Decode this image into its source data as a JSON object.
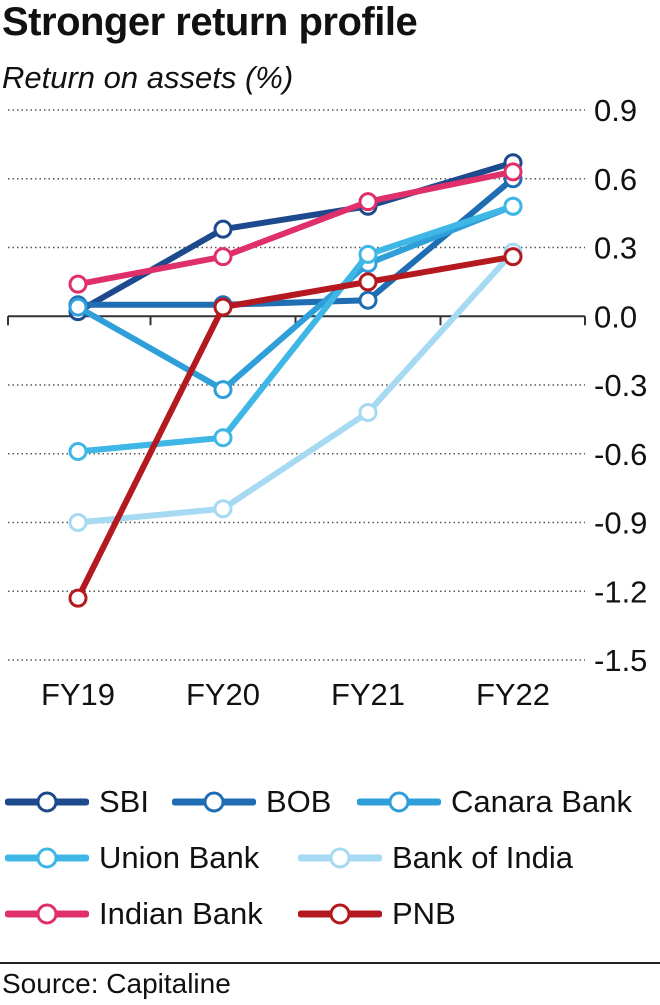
{
  "header": {
    "title": "Stronger return profile",
    "subtitle": "Return on assets (%)"
  },
  "footer": {
    "source": "Source: Capitaline"
  },
  "chart_data": {
    "type": "line",
    "title": "Stronger return profile",
    "subtitle": "Return on assets (%)",
    "xlabel": "",
    "ylabel": "Return on assets (%)",
    "categories": [
      "FY19",
      "FY20",
      "FY21",
      "FY22"
    ],
    "ylim": [
      -1.5,
      0.9
    ],
    "yticks": [
      0.9,
      0.6,
      0.3,
      0.0,
      -0.3,
      -0.6,
      -0.9,
      -1.2,
      -1.5
    ],
    "ytick_labels": [
      "0.9",
      "0.6",
      "0.3",
      "0.0",
      "-0.3",
      "-0.6",
      "-0.9",
      "-1.2",
      "-1.5"
    ],
    "grid": true,
    "legend_position": "bottom",
    "series": [
      {
        "name": "SBI",
        "color": "#1d4a8c",
        "values": [
          0.02,
          0.38,
          0.48,
          0.67
        ]
      },
      {
        "name": "BOB",
        "color": "#1f6db3",
        "values": [
          0.05,
          0.05,
          0.07,
          0.6
        ]
      },
      {
        "name": "Canara Bank",
        "color": "#2e9fd9",
        "values": [
          0.04,
          -0.32,
          0.23,
          0.48
        ]
      },
      {
        "name": "Union Bank",
        "color": "#3fb7e6",
        "values": [
          -0.59,
          -0.53,
          0.27,
          0.48
        ]
      },
      {
        "name": "Bank of India",
        "color": "#a6daf2",
        "values": [
          -0.9,
          -0.84,
          -0.42,
          0.28
        ]
      },
      {
        "name": "Indian Bank",
        "color": "#e0306c",
        "values": [
          0.14,
          0.26,
          0.5,
          0.63
        ]
      },
      {
        "name": "PNB",
        "color": "#b3191f",
        "values": [
          -1.23,
          0.04,
          0.15,
          0.26
        ]
      }
    ]
  }
}
